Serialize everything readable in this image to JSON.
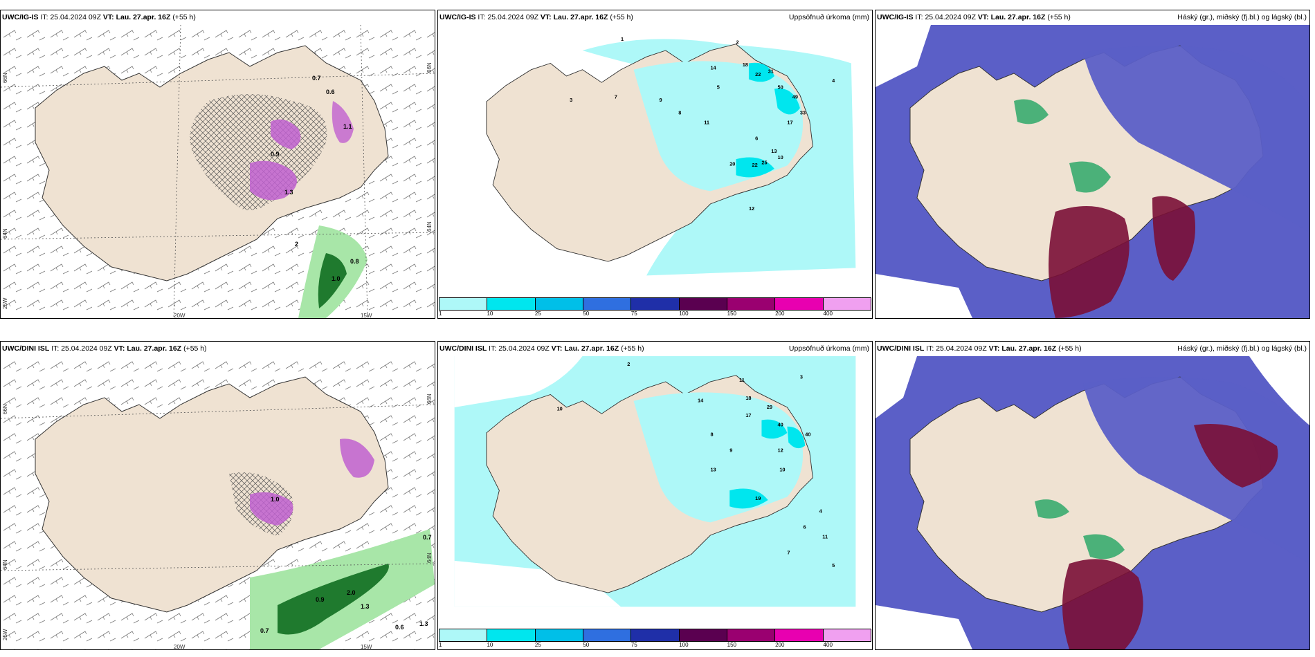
{
  "panels": [
    {
      "id": "p1",
      "model": "UWC/IG-IS",
      "it_label": "IT:",
      "it": "25.04.2024 09Z",
      "vt_label": "VT:",
      "vt": "Lau. 27.apr. 16Z",
      "lead": "(+55 h)",
      "right": "",
      "type": "wind"
    },
    {
      "id": "p2",
      "model": "UWC/IG-IS",
      "it_label": "IT:",
      "it": "25.04.2024 09Z",
      "vt_label": "VT:",
      "vt": "Lau. 27.apr. 16Z",
      "lead": "(+55 h)",
      "right": "Uppsöfnuð úrkoma (mm)",
      "type": "precip"
    },
    {
      "id": "p3",
      "model": "UWC/IG-IS",
      "it_label": "IT:",
      "it": "25.04.2024 09Z",
      "vt_label": "VT:",
      "vt": "Lau. 27.apr. 16Z",
      "lead": "(+55 h)",
      "right": "Háský (gr.), miðský (fj.bl.) og lágský (bl.)",
      "type": "cloud"
    },
    {
      "id": "p4",
      "model": "UWC/DINI ISL",
      "it_label": "IT:",
      "it": "25.04.2024 09Z",
      "vt_label": "VT:",
      "vt": "Lau. 27.apr. 16Z",
      "lead": "(+55 h)",
      "right": "",
      "type": "wind"
    },
    {
      "id": "p5",
      "model": "UWC/DINI ISL",
      "it_label": "IT:",
      "it": "25.04.2024 09Z",
      "vt_label": "VT:",
      "vt": "Lau. 27.apr. 16Z",
      "lead": "(+55 h)",
      "right": "Uppsöfnuð úrkoma (mm)",
      "type": "precip"
    },
    {
      "id": "p6",
      "model": "UWC/DINI ISL",
      "it_label": "IT:",
      "it": "25.04.2024 09Z",
      "vt_label": "VT:",
      "vt": "Lau. 27.apr. 16Z",
      "lead": "(+55 h)",
      "right": "Háský (gr.), miðský (fj.bl.) og lágský (bl.)",
      "type": "cloud"
    }
  ],
  "axis_labels": {
    "lat_66": "66N",
    "lat_64": "64N",
    "lon_20": "20W",
    "lon_15": "15W",
    "lon_25": "25W"
  },
  "colorbar": {
    "labels": [
      "1",
      "10",
      "25",
      "50",
      "75",
      "100",
      "150",
      "200",
      "400"
    ],
    "colors": [
      "#aef8f8",
      "#00e6ee",
      "#00bfe8",
      "#2f6fe0",
      "#1f2fa8",
      "#5a0050",
      "#9a0070",
      "#e800b0",
      "#f0a0f0"
    ]
  },
  "precip_numbers_top": [
    {
      "v": "1"
    },
    {
      "v": "2"
    },
    {
      "v": "3"
    },
    {
      "v": "7"
    },
    {
      "v": "9"
    },
    {
      "v": "11"
    },
    {
      "v": "14"
    },
    {
      "v": "18"
    },
    {
      "v": "22"
    },
    {
      "v": "31"
    },
    {
      "v": "50"
    },
    {
      "v": "49"
    },
    {
      "v": "33"
    },
    {
      "v": "17"
    },
    {
      "v": "20"
    },
    {
      "v": "22"
    },
    {
      "v": "25"
    },
    {
      "v": "13"
    },
    {
      "v": "10"
    },
    {
      "v": "6"
    },
    {
      "v": "5"
    },
    {
      "v": "4"
    },
    {
      "v": "8"
    },
    {
      "v": "12"
    }
  ],
  "precip_numbers_bottom": [
    {
      "v": "2"
    },
    {
      "v": "3"
    },
    {
      "v": "10"
    },
    {
      "v": "11"
    },
    {
      "v": "14"
    },
    {
      "v": "18"
    },
    {
      "v": "17"
    },
    {
      "v": "29"
    },
    {
      "v": "40"
    },
    {
      "v": "40"
    },
    {
      "v": "12"
    },
    {
      "v": "10"
    },
    {
      "v": "13"
    },
    {
      "v": "19"
    },
    {
      "v": "11"
    },
    {
      "v": "7"
    },
    {
      "v": "6"
    },
    {
      "v": "5"
    },
    {
      "v": "4"
    },
    {
      "v": "8"
    },
    {
      "v": "9"
    }
  ],
  "wind_values_top": [
    {
      "v": "0.8"
    },
    {
      "v": "1.0"
    },
    {
      "v": "1.3"
    },
    {
      "v": "0.9"
    },
    {
      "v": "1.1"
    },
    {
      "v": "0.6"
    },
    {
      "v": "0.7"
    },
    {
      "v": "2"
    }
  ],
  "wind_values_bottom": [
    {
      "v": "0.7"
    },
    {
      "v": "0.9"
    },
    {
      "v": "2.0"
    },
    {
      "v": "1.3"
    },
    {
      "v": "0.6"
    },
    {
      "v": "1.3"
    },
    {
      "v": "0.7"
    },
    {
      "v": "1.0"
    }
  ],
  "colors": {
    "land": "#efe2d2",
    "sea_precip": "#aef8f8",
    "cloud_high": "#5b5fc7",
    "cloud_mid": "#7a1036",
    "cloud_low": "#2ea86a",
    "rain_light": "#a8e6a8",
    "rain_dark": "#1f7a2e",
    "pink": "#c060d0"
  }
}
